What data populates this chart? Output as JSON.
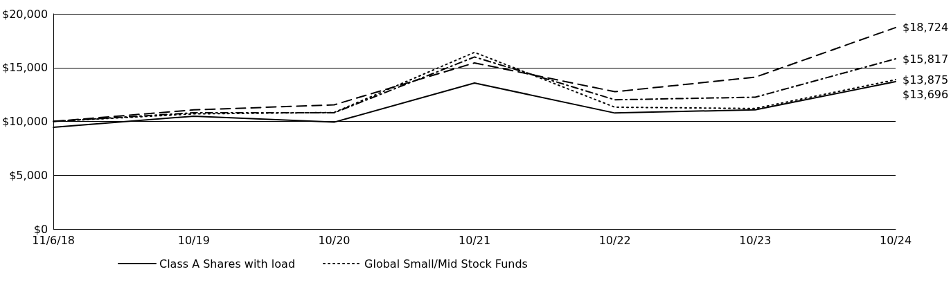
{
  "chart_data": {
    "type": "line",
    "categories": [
      "11/6/18",
      "10/19",
      "10/20",
      "10/21",
      "10/22",
      "10/23",
      "10/24"
    ],
    "ylim": [
      0,
      20000
    ],
    "yticks": [
      {
        "value": 0,
        "label": "$0"
      },
      {
        "value": 5000,
        "label": "$5,000"
      },
      {
        "value": 10000,
        "label": "$10,000"
      },
      {
        "value": 15000,
        "label": "$15,000"
      },
      {
        "value": 20000,
        "label": "$20,000"
      }
    ],
    "grid": "y",
    "legend": "bottom",
    "marker": "none",
    "series": [
      {
        "name": "Class A Shares with load",
        "color": "#000000",
        "line_style": "solid",
        "values": [
          9450,
          10490,
          9930,
          13570,
          10780,
          11080,
          13696
        ],
        "value_labels": [
          null,
          null,
          null,
          null,
          null,
          null,
          "$13,696"
        ]
      },
      {
        "color": "#000000",
        "line_style": "dashed",
        "values": [
          10000,
          11070,
          11540,
          15440,
          12760,
          14110,
          18724
        ],
        "value_labels": [
          null,
          null,
          null,
          null,
          null,
          null,
          "$18,724"
        ]
      },
      {
        "color": "#000000",
        "line_style": "dashdot",
        "values": [
          10000,
          10800,
          10800,
          15990,
          12010,
          12250,
          15817
        ],
        "value_labels": [
          null,
          null,
          null,
          null,
          null,
          null,
          "$15,817"
        ]
      },
      {
        "name": "Global Small/Mid Stock Funds",
        "color": "#000000",
        "line_style": "dotted",
        "values": [
          10000,
          10700,
          10830,
          16420,
          11320,
          11200,
          13875
        ],
        "value_labels": [
          null,
          null,
          null,
          null,
          null,
          null,
          "$13,875"
        ]
      }
    ]
  }
}
